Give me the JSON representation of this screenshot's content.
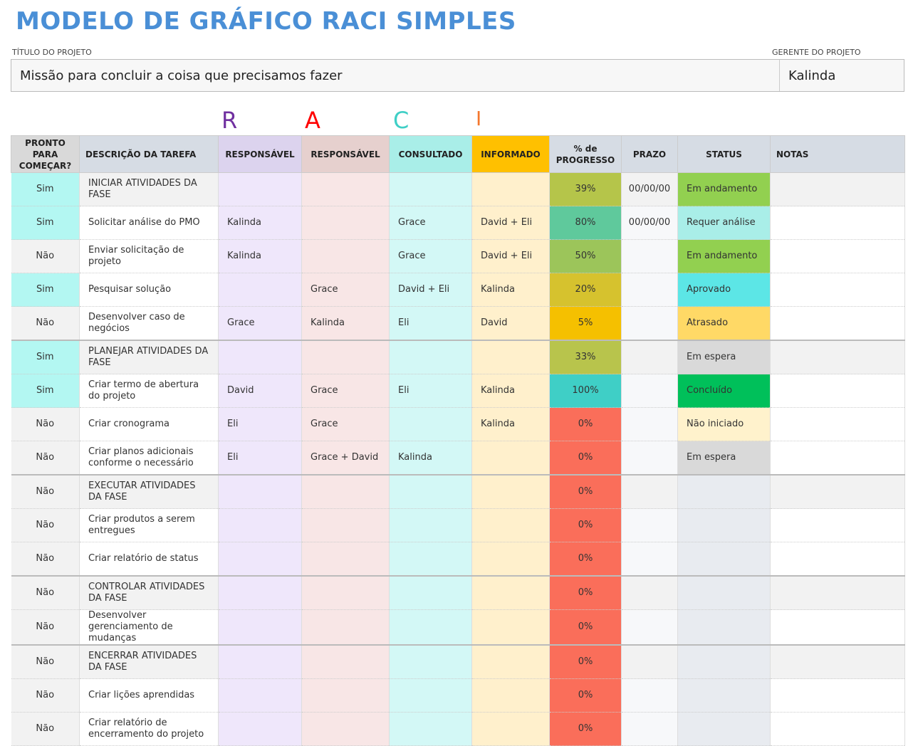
{
  "title": "MODELO DE GRÁFICO RACI SIMPLES",
  "project_title_label": "TÍTULO DO PROJETO",
  "project_manager_label": "GERENTE DO PROJETO",
  "project_title": "Missão para concluir a coisa que precisamos fazer",
  "project_manager": "Kalinda",
  "raci_letters": [
    "R",
    "A",
    "C",
    "I"
  ],
  "colors": {
    "title": "#4a8fd6",
    "r": "#7030a0",
    "a": "#ff0000",
    "c": "#3fcfc6",
    "i": "#f4772e"
  },
  "headers": [
    "PRONTO PARA COMEÇAR?",
    "DESCRIÇÃO DA TAREFA",
    "RESPONSÁVEL",
    "RESPONSÁVEL",
    "CONSULTADO",
    "INFORMADO",
    "% de PROGRESSO",
    "PRAZO",
    "STATUS",
    "NOTAS"
  ],
  "rows": [
    {
      "ready": "Sim",
      "task": "INICIAR ATIVIDADES DA FASE",
      "r": "",
      "a": "",
      "c": "",
      "i": "",
      "progress": "39%",
      "due": "00/00/00",
      "status": "Em andamento",
      "notes": "",
      "phase": true
    },
    {
      "ready": "Sim",
      "task": "Solicitar análise do PMO",
      "r": "Kalinda",
      "a": "",
      "c": "Grace",
      "i": "David + Eli",
      "progress": "80%",
      "due": "00/00/00",
      "status": "Requer análise",
      "notes": ""
    },
    {
      "ready": "Não",
      "task": "Enviar solicitação de projeto",
      "r": "Kalinda",
      "a": "",
      "c": "Grace",
      "i": "David + Eli",
      "progress": "50%",
      "due": "",
      "status": "Em andamento",
      "notes": ""
    },
    {
      "ready": "Sim",
      "task": "Pesquisar solução",
      "r": "",
      "a": "Grace",
      "c": "David + Eli",
      "i": "Kalinda",
      "progress": "20%",
      "due": "",
      "status": "Aprovado",
      "notes": ""
    },
    {
      "ready": "Não",
      "task": "Desenvolver caso de negócios",
      "r": "Grace",
      "a": "Kalinda",
      "c": "Eli",
      "i": "David",
      "progress": "5%",
      "due": "",
      "status": "Atrasado",
      "notes": ""
    },
    {
      "ready": "Sim",
      "task": "PLANEJAR ATIVIDADES DA FASE",
      "r": "",
      "a": "",
      "c": "",
      "i": "",
      "progress": "33%",
      "due": "",
      "status": "Em espera",
      "notes": "",
      "phase": true
    },
    {
      "ready": "Sim",
      "task": "Criar termo de abertura do projeto",
      "r": "David",
      "a": "Grace",
      "c": "Eli",
      "i": "Kalinda",
      "progress": "100%",
      "due": "",
      "status": "Concluído",
      "notes": ""
    },
    {
      "ready": "Não",
      "task": "Criar cronograma",
      "r": "Eli",
      "a": "Grace",
      "c": "",
      "i": "Kalinda",
      "progress": "0%",
      "due": "",
      "status": "Não iniciado",
      "notes": ""
    },
    {
      "ready": "Não",
      "task": "Criar planos adicionais conforme o necessário",
      "r": "Eli",
      "a": "Grace + David",
      "c": "Kalinda",
      "i": "",
      "progress": "0%",
      "due": "",
      "status": "Em espera",
      "notes": ""
    },
    {
      "ready": "Não",
      "task": "EXECUTAR ATIVIDADES DA FASE",
      "r": "",
      "a": "",
      "c": "",
      "i": "",
      "progress": "0%",
      "due": "",
      "status": "",
      "notes": "",
      "phase": true
    },
    {
      "ready": "Não",
      "task": "Criar produtos a serem entregues",
      "r": "",
      "a": "",
      "c": "",
      "i": "",
      "progress": "0%",
      "due": "",
      "status": "",
      "notes": ""
    },
    {
      "ready": "Não",
      "task": "Criar relatório de status",
      "r": "",
      "a": "",
      "c": "",
      "i": "",
      "progress": "0%",
      "due": "",
      "status": "",
      "notes": ""
    },
    {
      "ready": "Não",
      "task": "CONTROLAR ATIVIDADES DA FASE",
      "r": "",
      "a": "",
      "c": "",
      "i": "",
      "progress": "0%",
      "due": "",
      "status": "",
      "notes": "",
      "phase": true
    },
    {
      "ready": "Não",
      "task": "Desenvolver gerenciamento de mudanças",
      "r": "",
      "a": "",
      "c": "",
      "i": "",
      "progress": "0%",
      "due": "",
      "status": "",
      "notes": ""
    },
    {
      "ready": "Não",
      "task": "ENCERRAR ATIVIDADES DA FASE",
      "r": "",
      "a": "",
      "c": "",
      "i": "",
      "progress": "0%",
      "due": "",
      "status": "",
      "notes": "",
      "phase": true
    },
    {
      "ready": "Não",
      "task": "Criar lições aprendidas",
      "r": "",
      "a": "",
      "c": "",
      "i": "",
      "progress": "0%",
      "due": "",
      "status": "",
      "notes": ""
    },
    {
      "ready": "Não",
      "task": "Criar relatório de encerramento do projeto",
      "r": "",
      "a": "",
      "c": "",
      "i": "",
      "progress": "0%",
      "due": "",
      "status": "",
      "notes": ""
    }
  ],
  "status_colors": {
    "Em andamento": "#92d050",
    "Requer análise": "#a9eee8",
    "Aprovado": "#5ce6e6",
    "Atrasado": "#ffd966",
    "Em espera": "#d9d9d9",
    "Concluído": "#00c05a",
    "Não iniciado": "#fff2cc",
    "": "#e8ebf0"
  },
  "progress_colors": {
    "39%": "#b5c54a",
    "80%": "#5fc99c",
    "50%": "#9cc55a",
    "20%": "#d6c22e",
    "5%": "#f5c000",
    "33%": "#b8c44c",
    "100%": "#3fcfc6",
    "0%": "#fa6e5a"
  }
}
